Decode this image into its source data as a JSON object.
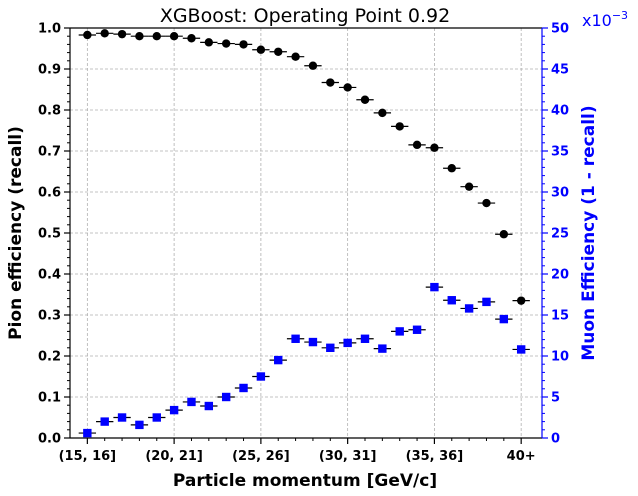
{
  "chart_data": {
    "type": "scatter",
    "title": "XGBoost: Operating Point 0.92",
    "xlabel": "Particle momentum [GeV/c]",
    "ylabel_left": "Pion efficiency (recall)",
    "ylabel_right": "Muon Efficiency (1 - recall)",
    "right_axis_multiplier": "x10$^{-3}$",
    "x_tick_labels": [
      "(15, 16]",
      "(20, 21]",
      "(25, 26]",
      "(30, 31]",
      "(35, 36]",
      "40+"
    ],
    "x_tick_bins": [
      15,
      20,
      25,
      30,
      35,
      40
    ],
    "xlim": [
      14,
      41.2
    ],
    "ylim_left": [
      0,
      1.0
    ],
    "ylim_right": [
      0,
      50
    ],
    "y_ticks_left": [
      "0.0",
      "0.1",
      "0.2",
      "0.3",
      "0.4",
      "0.5",
      "0.6",
      "0.7",
      "0.8",
      "0.9",
      "1.0"
    ],
    "y_ticks_right": [
      "0",
      "5",
      "10",
      "15",
      "20",
      "25",
      "30",
      "35",
      "40",
      "45",
      "50"
    ],
    "grid": true,
    "colors": {
      "pion": "#000000",
      "muon": "#0000ff",
      "grid": "#b0b0b0"
    },
    "series": [
      {
        "name": "Pion efficiency",
        "axis": "left",
        "marker": "circle",
        "x": [
          15,
          16,
          17,
          18,
          19,
          20,
          21,
          22,
          23,
          24,
          25,
          26,
          27,
          28,
          29,
          30,
          31,
          32,
          33,
          34,
          35,
          36,
          37,
          38,
          39,
          40
        ],
        "values": [
          0.983,
          0.987,
          0.985,
          0.98,
          0.98,
          0.98,
          0.975,
          0.965,
          0.962,
          0.96,
          0.947,
          0.942,
          0.93,
          0.908,
          0.867,
          0.855,
          0.825,
          0.793,
          0.76,
          0.715,
          0.708,
          0.658,
          0.613,
          0.573,
          0.497,
          0.335
        ]
      },
      {
        "name": "Muon efficiency",
        "axis": "right",
        "marker": "square",
        "x": [
          15,
          16,
          17,
          18,
          19,
          20,
          21,
          22,
          23,
          24,
          25,
          26,
          27,
          28,
          29,
          30,
          31,
          32,
          33,
          34,
          35,
          36,
          37,
          38,
          39,
          40
        ],
        "values": [
          0.6,
          2.0,
          2.5,
          1.6,
          2.5,
          3.4,
          4.4,
          3.9,
          5.0,
          6.1,
          7.5,
          9.5,
          12.1,
          11.7,
          11.0,
          11.6,
          12.1,
          10.9,
          13.0,
          13.2,
          18.4,
          16.8,
          15.8,
          16.6,
          14.5,
          10.8
        ]
      }
    ]
  }
}
